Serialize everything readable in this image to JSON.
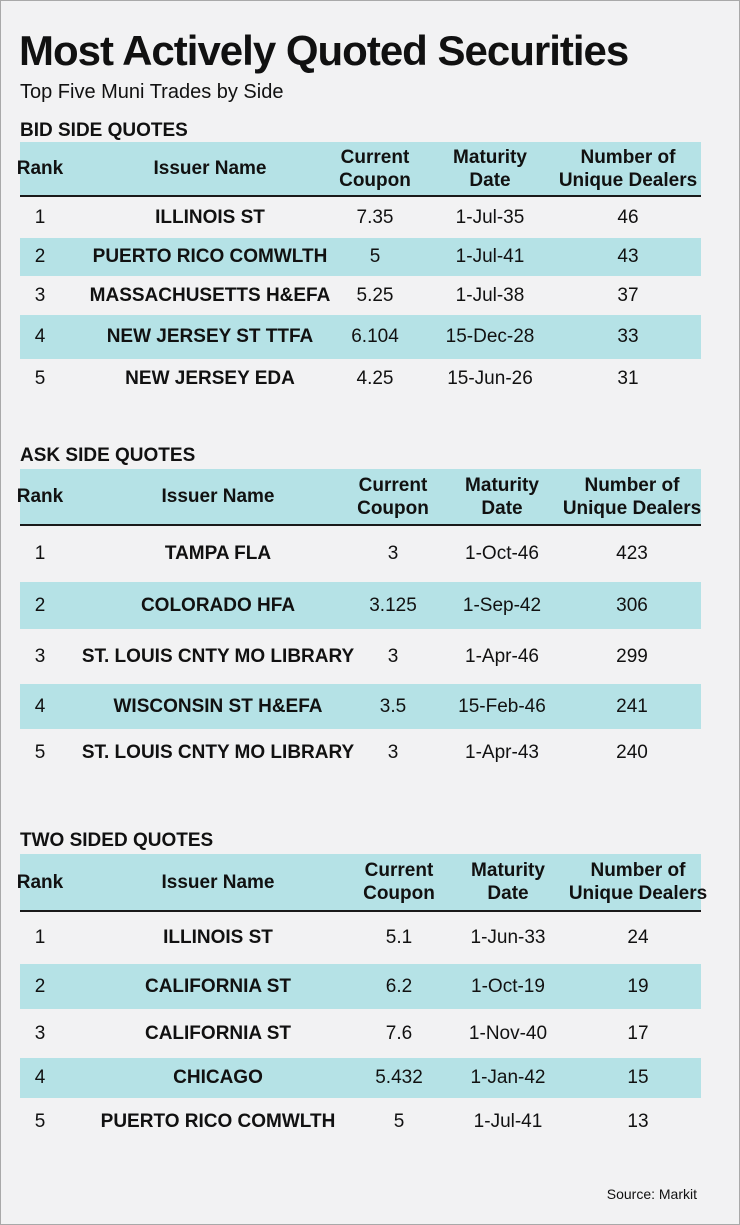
{
  "title": "Most Actively Quoted Securities",
  "subtitle": "Top Five Muni Trades by Side",
  "source": "Source: Markit",
  "colors": {
    "header_bg": "#b5e2e6",
    "stripe_bg": "#b5e2e6",
    "page_bg": "#f2f2f3"
  },
  "sections": [
    {
      "title": "BID SIDE QUOTES",
      "headers": {
        "rank": "Rank",
        "issuer": "Issuer Name",
        "coupon": "Current\nCoupon",
        "maturity": "Maturity\nDate",
        "dealers": "Number of\nUnique Dealers"
      },
      "rows": [
        {
          "rank": "1",
          "issuer": "ILLINOIS ST",
          "coupon": "7.35",
          "maturity": "1-Jul-35",
          "dealers": "46"
        },
        {
          "rank": "2",
          "issuer": "PUERTO RICO COMWLTH",
          "coupon": "5",
          "maturity": "1-Jul-41",
          "dealers": "43"
        },
        {
          "rank": "3",
          "issuer": "MASSACHUSETTS H&EFA",
          "coupon": "5.25",
          "maturity": "1-Jul-38",
          "dealers": "37"
        },
        {
          "rank": "4",
          "issuer": "NEW JERSEY ST TTFA",
          "coupon": "6.104",
          "maturity": "15-Dec-28",
          "dealers": "33"
        },
        {
          "rank": "5",
          "issuer": "NEW JERSEY EDA",
          "coupon": "4.25",
          "maturity": "15-Jun-26",
          "dealers": "31"
        }
      ]
    },
    {
      "title": "ASK SIDE QUOTES",
      "headers": {
        "rank": "Rank",
        "issuer": "Issuer Name",
        "coupon": "Current\nCoupon",
        "maturity": "Maturity\nDate",
        "dealers": "Number of\nUnique Dealers"
      },
      "rows": [
        {
          "rank": "1",
          "issuer": "TAMPA FLA",
          "coupon": "3",
          "maturity": "1-Oct-46",
          "dealers": "423"
        },
        {
          "rank": "2",
          "issuer": "COLORADO HFA",
          "coupon": "3.125",
          "maturity": "1-Sep-42",
          "dealers": "306"
        },
        {
          "rank": "3",
          "issuer": "ST. LOUIS CNTY MO LIBRARY",
          "coupon": "3",
          "maturity": "1-Apr-46",
          "dealers": "299"
        },
        {
          "rank": "4",
          "issuer": "WISCONSIN ST H&EFA",
          "coupon": "3.5",
          "maturity": "15-Feb-46",
          "dealers": "241"
        },
        {
          "rank": "5",
          "issuer": "ST. LOUIS CNTY MO LIBRARY",
          "coupon": "3",
          "maturity": "1-Apr-43",
          "dealers": "240"
        }
      ]
    },
    {
      "title": "TWO SIDED QUOTES",
      "headers": {
        "rank": "Rank",
        "issuer": "Issuer Name",
        "coupon": "Current\nCoupon",
        "maturity": "Maturity\nDate",
        "dealers": "Number of\nUnique Dealers"
      },
      "rows": [
        {
          "rank": "1",
          "issuer": "ILLINOIS ST",
          "coupon": "5.1",
          "maturity": "1-Jun-33",
          "dealers": "24"
        },
        {
          "rank": "2",
          "issuer": "CALIFORNIA ST",
          "coupon": "6.2",
          "maturity": "1-Oct-19",
          "dealers": "19"
        },
        {
          "rank": "3",
          "issuer": "CALIFORNIA ST",
          "coupon": "7.6",
          "maturity": "1-Nov-40",
          "dealers": "17"
        },
        {
          "rank": "4",
          "issuer": "CHICAGO",
          "coupon": "5.432",
          "maturity": "1-Jan-42",
          "dealers": "15"
        },
        {
          "rank": "5",
          "issuer": "PUERTO RICO COMWLTH",
          "coupon": "5",
          "maturity": "1-Jul-41",
          "dealers": "13"
        }
      ]
    }
  ]
}
